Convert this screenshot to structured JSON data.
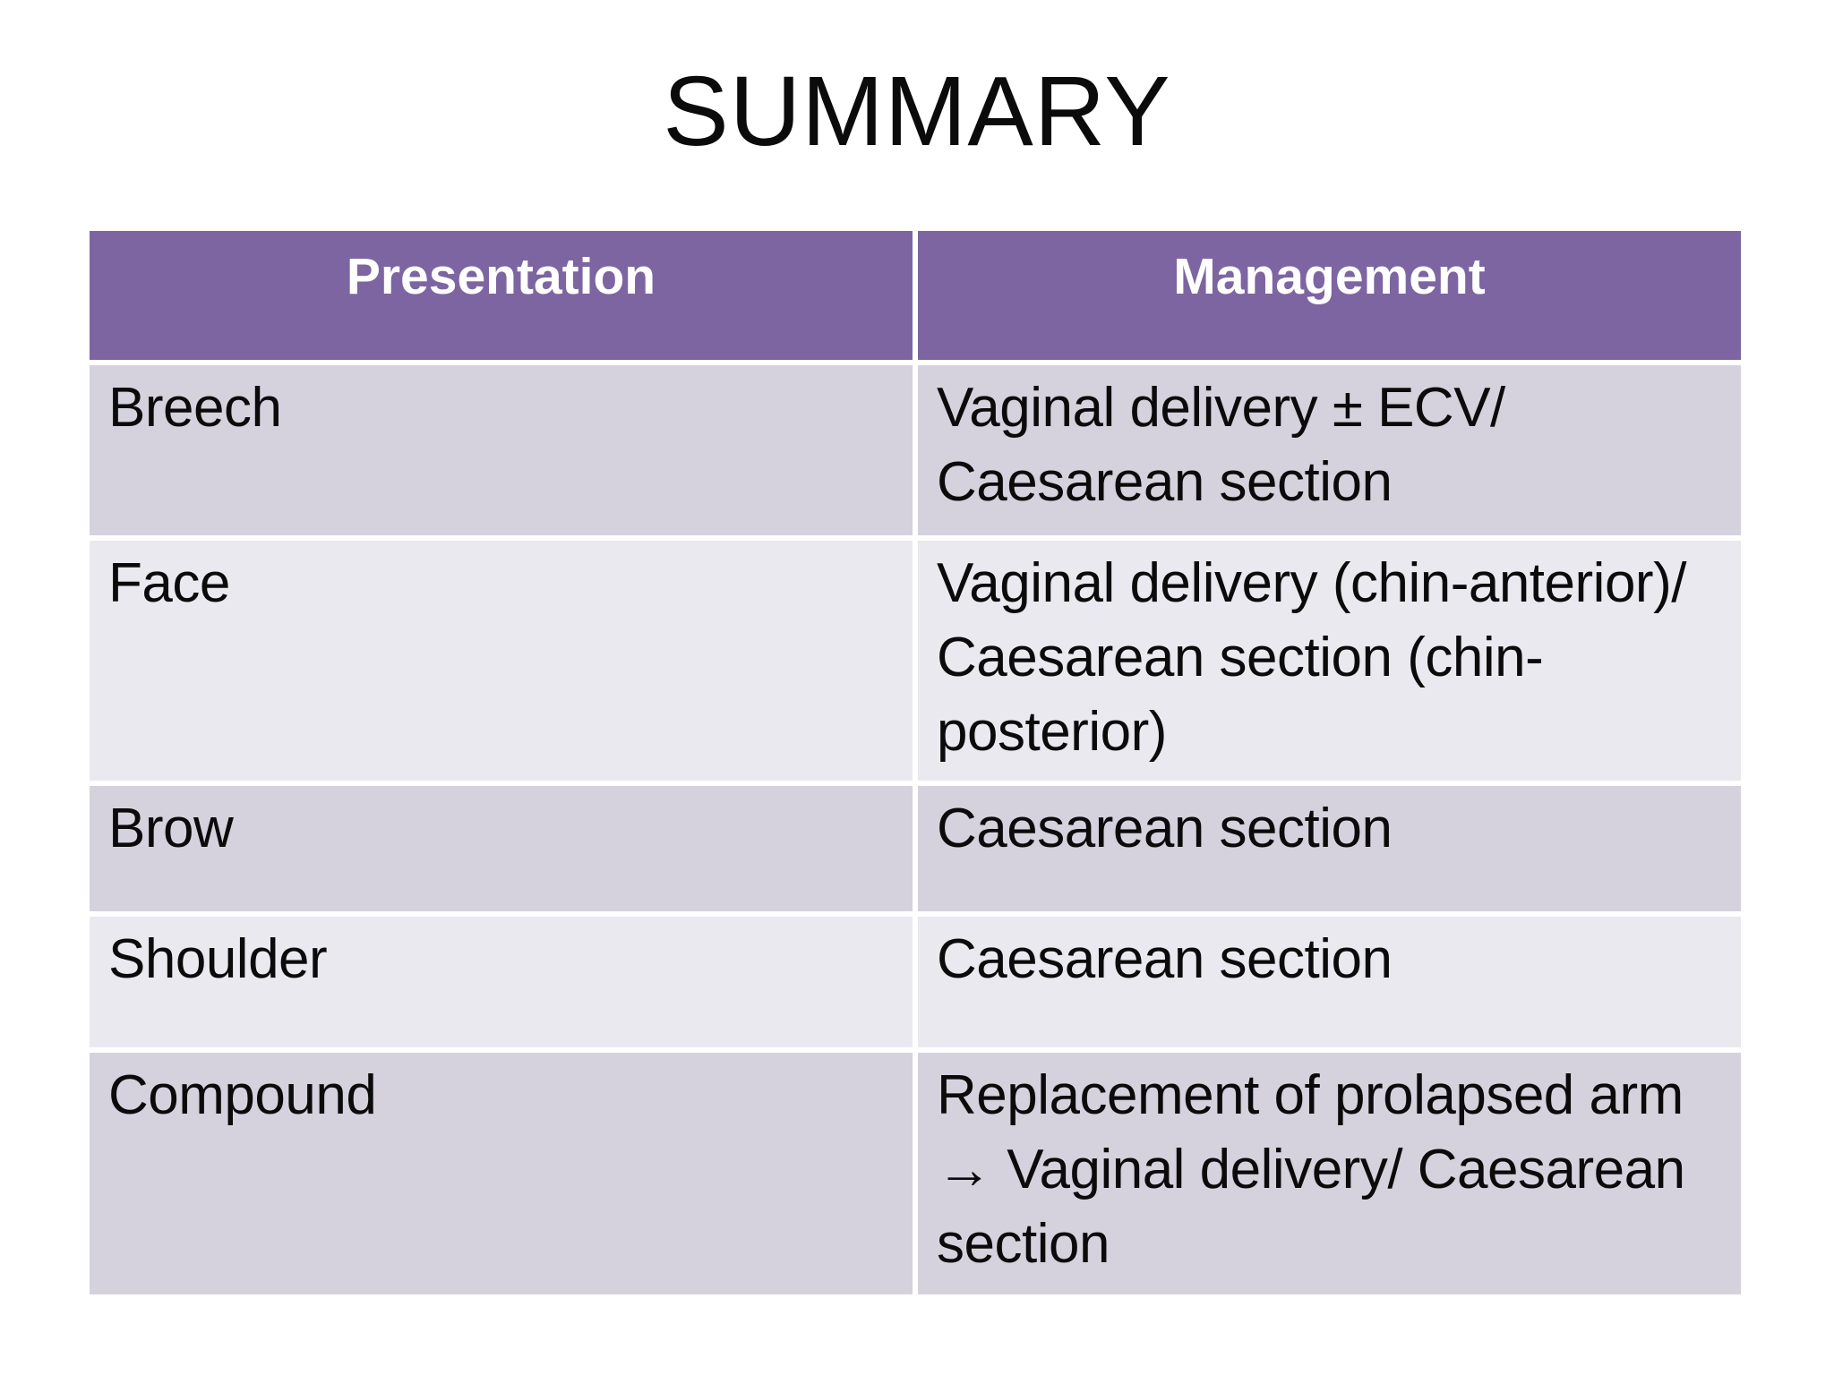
{
  "title": "SUMMARY",
  "colors": {
    "page_bg": "#FFFFFF",
    "header_bg": "#7D65A1",
    "header_text": "#FFFFFF",
    "band_dark": "#D5D2DE",
    "band_light": "#EAE9EF",
    "body_text": "#0B0B0B"
  },
  "table": {
    "headers": [
      "Presentation",
      "Management"
    ],
    "rows": [
      {
        "presentation": "Breech",
        "management": "Vaginal delivery ± ECV/ Caesarean section",
        "management_lines": [
          "Vaginal delivery ± ECV/",
          "Caesarean section"
        ]
      },
      {
        "presentation": "Face",
        "management": "Vaginal delivery (chin-anterior)/ Caesarean section (chin-posterior)",
        "management_lines": [
          "Vaginal delivery (chin-anterior)/",
          "Caesarean section (chin-",
          "posterior)"
        ]
      },
      {
        "presentation": "Brow",
        "management": "Caesarean section",
        "management_lines": [
          "Caesarean section"
        ]
      },
      {
        "presentation": "Shoulder",
        "management": "Caesarean section",
        "management_lines": [
          "Caesarean section"
        ]
      },
      {
        "presentation": "Compound",
        "management": "Replacement of prolapsed arm → Vaginal delivery/ Caesarean section",
        "management_lines": [
          "Replacement of prolapsed arm",
          "→ Vaginal delivery/ Caesarean",
          "section"
        ]
      }
    ]
  }
}
